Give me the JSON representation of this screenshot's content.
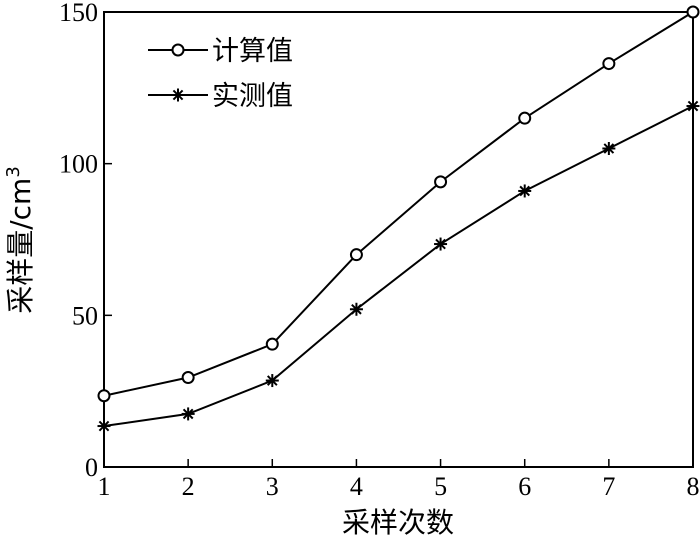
{
  "chart_data": {
    "type": "line",
    "x": [
      1,
      2,
      3,
      4,
      5,
      6,
      7,
      8
    ],
    "series": [
      {
        "name": "计算值",
        "marker": "circle",
        "values": [
          23.5,
          29.5,
          40.5,
          70,
          94,
          115,
          133,
          150
        ]
      },
      {
        "name": "实测值",
        "marker": "asterisk",
        "values": [
          13.5,
          17.5,
          28.5,
          52,
          73.5,
          91,
          105,
          119
        ]
      }
    ],
    "xlabel": "采样次数",
    "ylabel_main": "采样量/cm",
    "ylabel_sup": "3",
    "xlim": [
      1,
      8
    ],
    "ylim": [
      0,
      150
    ],
    "yticks": [
      0,
      50,
      100,
      150
    ],
    "xticks": [
      1,
      2,
      3,
      4,
      5,
      6,
      7,
      8
    ],
    "grid": false,
    "legend_position": "top-left",
    "color": "#000000"
  }
}
